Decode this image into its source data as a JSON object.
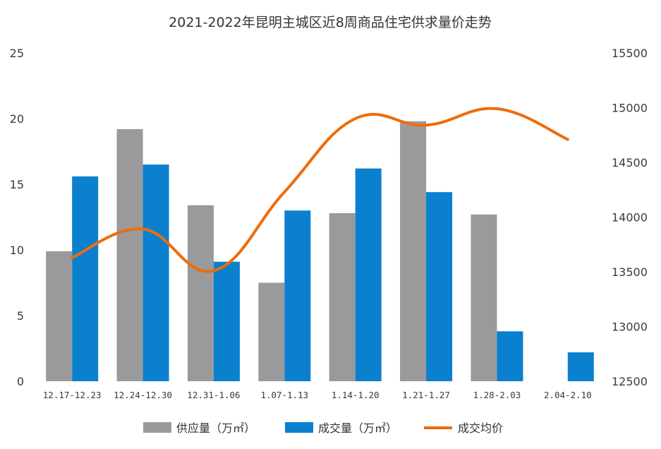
{
  "chart_data": {
    "type": "bar",
    "title": "2021-2022年昆明主城区近8周商品住宅供求量价走势",
    "categories": [
      "12.17-12.23",
      "12.24-12.30",
      "12.31-1.06",
      "1.07-1.13",
      "1.14-1.20",
      "1.21-1.27",
      "1.28-2.03",
      "2.04-2.10"
    ],
    "series": [
      {
        "name": "供应量（万㎡）",
        "type": "bar",
        "axis": "left",
        "color": "#9a9a9c",
        "values": [
          9.9,
          19.2,
          13.4,
          7.5,
          12.8,
          19.8,
          12.7,
          null
        ]
      },
      {
        "name": "成交量（万㎡）",
        "type": "bar",
        "axis": "left",
        "color": "#0a80cf",
        "values": [
          15.6,
          16.5,
          9.1,
          13.0,
          16.2,
          14.4,
          3.8,
          2.2
        ]
      },
      {
        "name": "成交均价",
        "type": "line",
        "axis": "right",
        "color": "#ee6c0a",
        "values": [
          13630,
          13890,
          13510,
          14230,
          14900,
          14840,
          14990,
          14710
        ]
      }
    ],
    "ylim": [
      0,
      25
    ],
    "yticks": [
      "0",
      "5",
      "10",
      "15",
      "20",
      "25"
    ],
    "y2lim": [
      12500,
      15500
    ],
    "y2ticks": [
      "12500",
      "13000",
      "13500",
      "14000",
      "14500",
      "15000",
      "15500"
    ],
    "xlabel": "",
    "ylabel": "",
    "grid": false,
    "legend_position": "bottom"
  }
}
